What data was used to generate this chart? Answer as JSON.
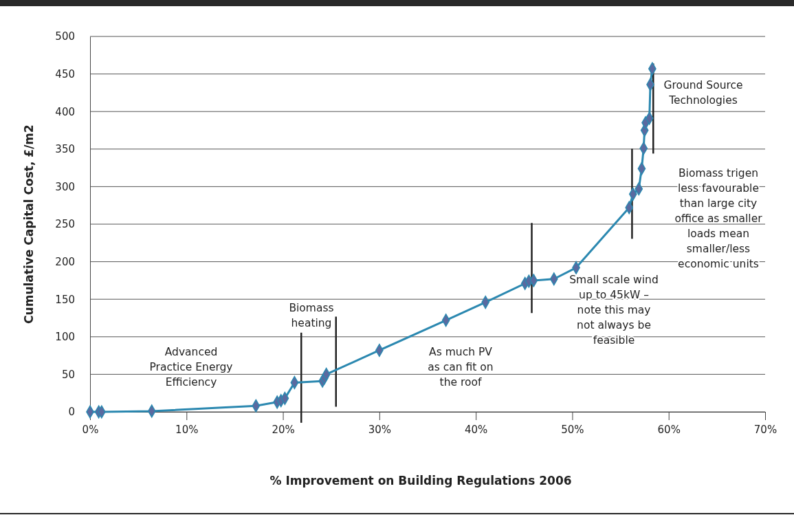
{
  "chart_data": {
    "type": "line",
    "xlabel": "% Improvement on Building Regulations 2006",
    "ylabel": "Cumulative Capital Cost, £/m2",
    "x": [
      0,
      0.9,
      1.2,
      6.4,
      17.2,
      19.4,
      19.8,
      20.2,
      21.2,
      24.1,
      24.3,
      24.5,
      30.0,
      36.9,
      41.0,
      45.1,
      45.5,
      46.0,
      48.1,
      50.4,
      55.9,
      56.3,
      56.9,
      57.2,
      57.4,
      57.5,
      57.6,
      58.0,
      58.1,
      58.3
    ],
    "series": [
      {
        "color": "#2b88b0",
        "values": [
          0,
          0,
          0,
          1,
          8,
          13,
          15,
          18,
          39,
          41,
          45,
          50,
          82,
          122,
          146,
          171,
          174,
          175,
          177,
          192,
          272,
          290,
          297,
          324,
          351,
          375,
          385,
          391,
          436,
          457
        ]
      }
    ],
    "marker": "diamond",
    "grid": "y",
    "xlim": [
      0,
      70
    ],
    "xticks": [
      {
        "value": 0,
        "label": "0%"
      },
      {
        "value": 10,
        "label": "10%"
      },
      {
        "value": 20,
        "label": "20%"
      },
      {
        "value": 30,
        "label": "30%"
      },
      {
        "value": 40,
        "label": "40%"
      },
      {
        "value": 50,
        "label": "50%"
      },
      {
        "value": 60,
        "label": "60%"
      },
      {
        "value": 70,
        "label": "70%"
      }
    ],
    "ylim": [
      0,
      500
    ],
    "yticks": [
      0,
      50,
      100,
      150,
      200,
      250,
      300,
      350,
      400,
      450,
      500
    ],
    "ref_lines": [
      {
        "axis": "x",
        "value": 21.9,
        "color": "#222222"
      },
      {
        "axis": "x",
        "value": 25.5,
        "color": "#222222"
      },
      {
        "axis": "x",
        "value": 45.8,
        "color": "#222222"
      },
      {
        "axis": "x",
        "value": 56.2,
        "color": "#222222"
      },
      {
        "axis": "x",
        "value": 58.4,
        "color": "#222222"
      }
    ],
    "annotations": [
      "Advanced\nPractice Energy\nEfficiency",
      "Biomass\nheating",
      "As much PV\nas can fit on\nthe roof",
      "Small scale wind\nup to 45kW –\nnote this may\nnot always be\nfeasible",
      "Biomass trigen\nless favourable\nthan large city\noffice as smaller\nloads mean\nsmaller/less\neconomic units",
      "Ground Source\nTechnologies"
    ]
  }
}
